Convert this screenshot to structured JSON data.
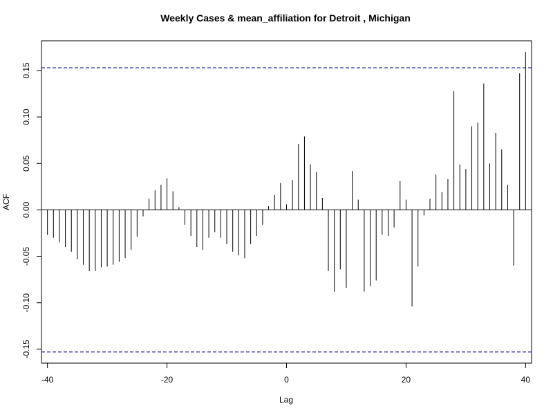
{
  "chart_data": {
    "type": "bar",
    "subtype": "acf-lollipop",
    "title": "Weekly Cases & mean_affiliation for Detroit , Michigan",
    "xlabel": "Lag",
    "ylabel": "ACF",
    "xlim": [
      -41,
      41
    ],
    "ylim": [
      -0.165,
      0.182
    ],
    "xticks": [
      -40,
      -20,
      0,
      20,
      40
    ],
    "xtick_labels": [
      "-40",
      "-20",
      "0",
      "20",
      "40"
    ],
    "yticks": [
      -0.15,
      -0.1,
      -0.05,
      0.0,
      0.05,
      0.1,
      0.15
    ],
    "ytick_labels": [
      "-0.15",
      "-0.10",
      "-0.05",
      "0.00",
      "0.05",
      "0.10",
      "0.15"
    ],
    "confidence_bound": 0.153,
    "grid": false,
    "series": [
      {
        "lags": [
          -40,
          -39,
          -38,
          -37,
          -36,
          -35,
          -34,
          -33,
          -32,
          -31,
          -30,
          -29,
          -28,
          -27,
          -26,
          -25,
          -24,
          -23,
          -22,
          -21,
          -20,
          -19,
          -18,
          -17,
          -16,
          -15,
          -14,
          -13,
          -12,
          -11,
          -10,
          -9,
          -8,
          -7,
          -6,
          -5,
          -4,
          -3,
          -2,
          -1,
          0,
          1,
          2,
          3,
          4,
          5,
          6,
          7,
          8,
          9,
          10,
          11,
          12,
          13,
          14,
          15,
          16,
          17,
          18,
          19,
          20,
          21,
          22,
          23,
          24,
          25,
          26,
          27,
          28,
          29,
          30,
          31,
          32,
          33,
          34,
          35,
          36,
          37,
          38,
          39,
          40
        ],
        "values": [
          -0.027,
          -0.03,
          -0.035,
          -0.04,
          -0.045,
          -0.053,
          -0.059,
          -0.066,
          -0.066,
          -0.062,
          -0.061,
          -0.059,
          -0.056,
          -0.052,
          -0.043,
          -0.029,
          -0.007,
          0.012,
          0.021,
          0.027,
          0.034,
          0.02,
          0.003,
          -0.016,
          -0.028,
          -0.04,
          -0.043,
          -0.03,
          -0.024,
          -0.03,
          -0.037,
          -0.045,
          -0.049,
          -0.052,
          -0.037,
          -0.028,
          -0.016,
          0.004,
          0.016,
          0.029,
          0.006,
          0.032,
          0.071,
          0.079,
          0.049,
          0.041,
          0.013,
          -0.066,
          -0.088,
          -0.064,
          -0.084,
          0.042,
          0.011,
          -0.088,
          -0.082,
          -0.076,
          -0.027,
          -0.028,
          -0.019,
          0.031,
          0.011,
          -0.104,
          -0.061,
          -0.006,
          0.012,
          0.038,
          0.019,
          0.033,
          0.128,
          0.049,
          0.044,
          0.09,
          0.094,
          0.136,
          0.05,
          0.083,
          0.065,
          0.027,
          -0.06,
          0.147,
          0.17
        ]
      }
    ]
  }
}
